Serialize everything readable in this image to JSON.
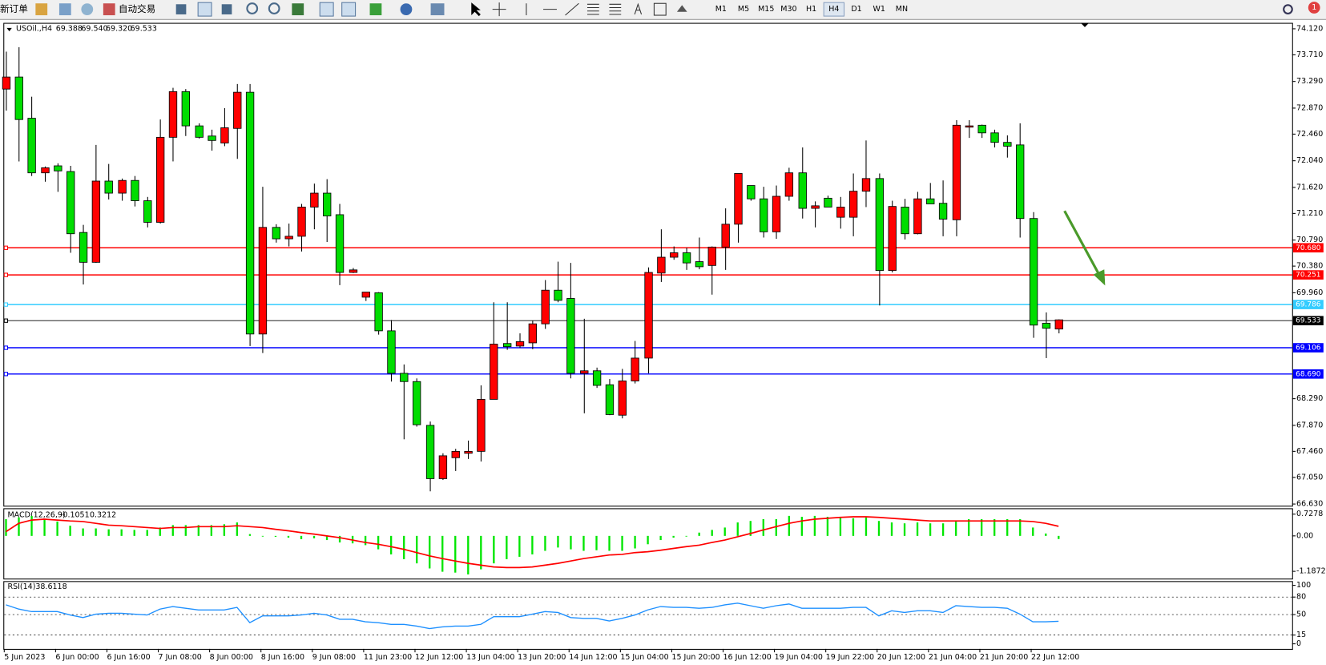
{
  "toolbar": {
    "new_order": "新订单",
    "auto_trade": "自动交易",
    "timeframes": [
      "M1",
      "M5",
      "M15",
      "M30",
      "H1",
      "H4",
      "D1",
      "W1",
      "MN"
    ],
    "selected_index": 5,
    "notifications": "1"
  },
  "chart_data": [
    {
      "type": "candlestick",
      "title": "USOil.,H4",
      "ohlc_labels": [
        "69.388",
        "69.540",
        "69.320",
        "69.533"
      ],
      "up_color": "#ff0000",
      "down_color": "#00dd00",
      "categories": [
        "5 Jun 2023",
        null,
        null,
        null,
        "6 Jun 00:00",
        null,
        null,
        null,
        "6 Jun 16:00",
        null,
        null,
        null,
        "7 Jun 08:00",
        null,
        null,
        null,
        "8 Jun 00:00",
        null,
        null,
        null,
        "8 Jun 16:00",
        null,
        null,
        null,
        "9 Jun 08:00",
        null,
        null,
        null,
        "11 Jun 23:00",
        null,
        null,
        null,
        "12 Jun 12:00",
        null,
        null,
        null,
        "13 Jun 04:00",
        null,
        null,
        null,
        "13 Jun 20:00",
        null,
        null,
        null,
        "14 Jun 12:00",
        null,
        null,
        null,
        "15 Jun 04:00",
        null,
        null,
        null,
        "15 Jun 20:00",
        null,
        null,
        null,
        "16 Jun 12:00",
        null,
        null,
        null,
        "19 Jun 04:00",
        null,
        null,
        null,
        "19 Jun 22:00",
        null,
        null,
        null,
        "20 Jun 12:00",
        null,
        null,
        null,
        "21 Jun 04:00",
        null,
        null,
        null,
        "21 Jun 20:00",
        null,
        null,
        null,
        "22 Jun 12:00",
        null,
        null
      ],
      "open": [
        73.17,
        73.36,
        72.71,
        71.85,
        71.96,
        71.87,
        70.91,
        70.44,
        71.72,
        71.53,
        71.73,
        71.41,
        71.07,
        72.41,
        73.13,
        72.59,
        72.43,
        72.32,
        72.55,
        73.12,
        69.31,
        70.99,
        70.81,
        70.85,
        71.31,
        71.53,
        71.19,
        70.28,
        69.89,
        69.96,
        69.36,
        68.69,
        68.56,
        67.87,
        67.03,
        67.36,
        67.43,
        67.46,
        68.28,
        69.16,
        69.12,
        69.17,
        69.47,
        70.0,
        69.87,
        68.69,
        68.73,
        68.51,
        68.03,
        68.57,
        68.93,
        70.27,
        70.52,
        70.59,
        70.45,
        70.39,
        70.68,
        71.04,
        71.65,
        71.44,
        70.92,
        71.48,
        71.85,
        71.29,
        71.45,
        71.15,
        71.15,
        71.56,
        71.76,
        70.31,
        71.31,
        70.89,
        71.44,
        71.37,
        71.11,
        72.57,
        72.6,
        72.48,
        72.33,
        72.29,
        71.13,
        69.48,
        69.388
      ],
      "high": [
        73.76,
        73.83,
        73.05,
        71.95,
        72.0,
        71.96,
        71.03,
        72.29,
        71.99,
        71.76,
        71.8,
        71.47,
        72.69,
        73.19,
        73.17,
        72.63,
        72.53,
        72.87,
        73.25,
        73.25,
        71.63,
        71.04,
        71.05,
        71.36,
        71.68,
        71.75,
        71.36,
        70.35,
        69.97,
        69.97,
        69.53,
        68.83,
        68.61,
        67.93,
        67.43,
        67.5,
        67.63,
        68.5,
        69.81,
        69.81,
        69.32,
        69.52,
        70.16,
        70.45,
        70.43,
        69.55,
        68.78,
        68.6,
        68.76,
        69.2,
        70.36,
        70.96,
        70.69,
        70.67,
        70.83,
        70.69,
        71.29,
        71.84,
        71.65,
        71.63,
        71.65,
        71.93,
        72.25,
        71.4,
        71.49,
        71.47,
        71.84,
        72.36,
        71.84,
        71.41,
        71.44,
        71.55,
        71.69,
        71.73,
        72.68,
        72.68,
        72.61,
        72.53,
        72.44,
        72.63,
        71.23,
        69.65,
        69.54
      ],
      "low": [
        72.83,
        72.03,
        71.8,
        71.71,
        71.55,
        70.59,
        70.09,
        70.43,
        71.43,
        71.41,
        71.32,
        70.99,
        71.05,
        72.03,
        72.43,
        72.39,
        72.2,
        72.27,
        72.07,
        69.12,
        69.01,
        70.75,
        70.69,
        70.61,
        70.96,
        70.76,
        70.08,
        70.27,
        69.83,
        69.3,
        68.56,
        67.65,
        67.85,
        66.83,
        67.01,
        67.15,
        67.34,
        67.3,
        68.28,
        69.06,
        69.09,
        69.07,
        69.39,
        69.81,
        68.61,
        68.06,
        68.46,
        68.03,
        67.98,
        68.53,
        68.69,
        70.13,
        70.48,
        70.32,
        70.33,
        69.93,
        70.32,
        70.75,
        71.41,
        70.83,
        70.81,
        71.41,
        71.13,
        70.99,
        71.31,
        70.97,
        70.85,
        71.31,
        69.76,
        70.28,
        70.8,
        70.88,
        71.36,
        70.85,
        70.85,
        72.4,
        72.4,
        72.25,
        72.09,
        70.83,
        69.25,
        68.93,
        69.32
      ],
      "close": [
        73.36,
        72.69,
        71.85,
        71.93,
        71.88,
        70.89,
        70.44,
        71.72,
        71.53,
        71.73,
        71.41,
        71.07,
        72.41,
        73.13,
        72.59,
        72.41,
        72.36,
        72.56,
        73.12,
        69.31,
        70.99,
        70.81,
        70.85,
        71.31,
        71.53,
        71.17,
        70.28,
        70.32,
        69.97,
        69.36,
        68.69,
        68.56,
        67.88,
        67.03,
        67.39,
        67.46,
        67.46,
        68.28,
        69.15,
        69.11,
        69.19,
        69.47,
        70.0,
        69.84,
        68.69,
        68.73,
        68.5,
        68.04,
        68.57,
        68.93,
        70.28,
        70.52,
        70.59,
        70.43,
        70.37,
        70.68,
        71.04,
        71.84,
        71.44,
        70.92,
        71.48,
        71.85,
        71.29,
        71.33,
        71.31,
        71.31,
        71.56,
        71.76,
        70.31,
        71.32,
        70.89,
        71.44,
        71.36,
        71.12,
        72.6,
        72.59,
        72.48,
        72.33,
        72.27,
        71.13,
        69.45,
        69.4,
        69.533
      ],
      "levels": [
        {
          "value": 70.68,
          "label": "70.680",
          "color": "#ff0000"
        },
        {
          "value": 70.251,
          "color": "#ff0000"
        },
        {
          "value": 69.786,
          "color": "#33ccff"
        },
        {
          "value": 69.533,
          "color": "#000000"
        },
        {
          "value": 69.106,
          "color": "#0000ff"
        },
        {
          "value": 68.69,
          "label": "68.690",
          "color": "#0000ff"
        }
      ],
      "ylim": [
        66.603,
        74.2
      ],
      "yticks": [
        {
          "value": 74.12,
          "label": "74.120"
        },
        {
          "value": 73.71,
          "label": "73.710"
        },
        {
          "value": 73.29,
          "label": "73.290"
        },
        {
          "value": 72.87,
          "label": "72.870"
        },
        {
          "value": 72.46,
          "label": "72.460"
        },
        {
          "value": 72.04,
          "label": "72.040"
        },
        {
          "value": 71.62,
          "label": "71.620"
        },
        {
          "value": 71.21,
          "label": "71.210"
        },
        {
          "value": 70.79,
          "label": "70.790"
        },
        {
          "value": 70.38,
          "label": "70.380"
        },
        {
          "value": 69.96,
          "label": "69.960"
        },
        {
          "value": 68.29,
          "label": "68.290"
        },
        {
          "value": 67.87,
          "label": "67.870"
        },
        {
          "value": 67.46,
          "label": "67.460"
        },
        {
          "value": 67.05,
          "label": "67.050"
        },
        {
          "value": 66.63,
          "label": "66.630"
        }
      ]
    },
    {
      "type": "macd",
      "title": "MACD(12,26,9)",
      "series": [
        {
          "color": "#00e600",
          "values": [
            0.56,
            0.62,
            0.67,
            0.56,
            0.48,
            0.34,
            0.25,
            0.25,
            0.22,
            0.22,
            0.2,
            0.2,
            0.28,
            0.36,
            0.36,
            0.36,
            0.36,
            0.39,
            0.45,
            0.06,
            0,
            -0.03,
            -0.06,
            -0.11,
            -0.08,
            -0.14,
            -0.22,
            -0.25,
            -0.31,
            -0.45,
            -0.62,
            -0.78,
            -0.92,
            -1.09,
            -1.2,
            -1.23,
            -1.29,
            -1.12,
            -0.92,
            -0.78,
            -0.7,
            -0.62,
            -0.5,
            -0.39,
            -0.45,
            -0.5,
            -0.48,
            -0.5,
            -0.5,
            -0.42,
            -0.28,
            -0.14,
            -0.06,
            0,
            0.11,
            0.2,
            0.28,
            0.45,
            0.5,
            0.56,
            0.56,
            0.67,
            0.64,
            0.67,
            0.64,
            0.62,
            0.59,
            0.62,
            0.5,
            0.45,
            0.42,
            0.45,
            0.42,
            0.42,
            0.5,
            0.56,
            0.56,
            0.56,
            0.56,
            0.56,
            0.28,
            0.08,
            -0.1051
          ]
        },
        {
          "color": "#ff0000",
          "values": [
            0.14,
            0.42,
            0.53,
            0.56,
            0.53,
            0.5,
            0.48,
            0.42,
            0.36,
            0.34,
            0.31,
            0.28,
            0.25,
            0.28,
            0.28,
            0.31,
            0.31,
            0.31,
            0.34,
            0.31,
            0.28,
            0.22,
            0.17,
            0.11,
            0.06,
            0,
            -0.06,
            -0.14,
            -0.22,
            -0.28,
            -0.36,
            -0.45,
            -0.56,
            -0.67,
            -0.76,
            -0.84,
            -0.92,
            -0.98,
            -1.04,
            -1.06,
            -1.06,
            -1.04,
            -0.98,
            -0.92,
            -0.84,
            -0.76,
            -0.7,
            -0.64,
            -0.62,
            -0.56,
            -0.53,
            -0.48,
            -0.42,
            -0.36,
            -0.31,
            -0.22,
            -0.14,
            -0.03,
            0.08,
            0.2,
            0.31,
            0.42,
            0.5,
            0.56,
            0.59,
            0.62,
            0.64,
            0.64,
            0.62,
            0.59,
            0.56,
            0.53,
            0.5,
            0.5,
            0.5,
            0.5,
            0.5,
            0.5,
            0.5,
            0.5,
            0.48,
            0.42,
            0.3212
          ]
        }
      ],
      "ylim": [
        -1.43,
        0.896
      ],
      "yticks": [
        0.7278,
        {
          "value": 0,
          "label": "0.00"
        },
        -1.1872
      ]
    },
    {
      "type": "line",
      "title": "RSI(14)",
      "color": "#1e90ff",
      "values": [
        66.7,
        59.4,
        55.1,
        55.1,
        55.1,
        49.3,
        44.9,
        50.7,
        52.2,
        52.2,
        50.7,
        49.3,
        59.4,
        63.8,
        60.9,
        58.0,
        58.0,
        58.0,
        62.3,
        36.2,
        47.8,
        47.8,
        47.8,
        49.3,
        52.2,
        49.3,
        42.0,
        42.0,
        37.7,
        36.2,
        33.3,
        33.3,
        30.4,
        26.1,
        29.0,
        30.4,
        30.4,
        33.3,
        46.4,
        46.4,
        46.4,
        50.7,
        55.1,
        53.6,
        44.9,
        43.5,
        43.5,
        39.1,
        43.5,
        49.3,
        58.0,
        63.8,
        62.3,
        62.3,
        60.9,
        62.3,
        66.7,
        69.6,
        65.2,
        60.9,
        65.2,
        68.1,
        60.9,
        60.9,
        60.9,
        60.9,
        62.3,
        62.3,
        47.8,
        56.5,
        53.6,
        56.5,
        56.5,
        53.6,
        65.2,
        63.8,
        62.3,
        62.3,
        60.9,
        50.7,
        37.7,
        37.7,
        38.6118
      ],
      "ylim": [
        0,
        100
      ],
      "yticks": [
        100,
        80,
        50,
        15,
        0
      ]
    }
  ]
}
